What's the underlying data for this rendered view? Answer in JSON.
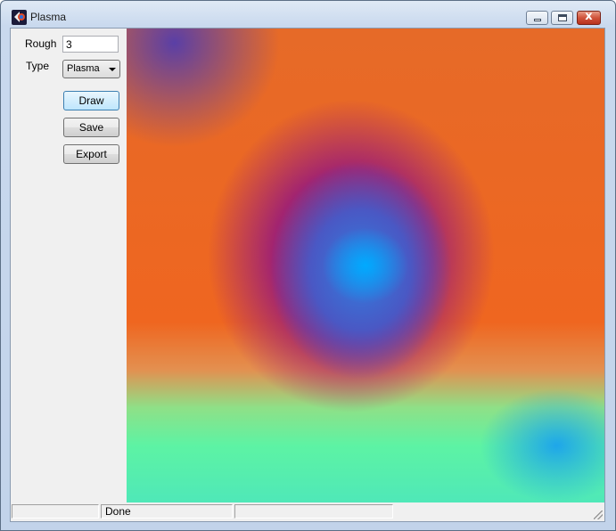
{
  "window": {
    "title": "Plasma",
    "icon": "plasma-app-icon",
    "controls": {
      "minimize": "minimize-icon",
      "maximize": "restore-icon",
      "close_glyph": "x"
    }
  },
  "sidebar": {
    "rough_label": "Rough",
    "rough_value": "3",
    "type_label": "Type",
    "type_selected": "Plasma",
    "buttons": {
      "draw": "Draw",
      "save": "Save",
      "export": "Export"
    }
  },
  "canvas": {
    "description_icon": "plasma-fractal-image",
    "colors": [
      "#2f7fe0",
      "#7a2e86",
      "#e66a28",
      "#5df3a4",
      "#1ea6ea"
    ]
  },
  "statusbar": {
    "panel1": "",
    "panel2": "Done",
    "panel3": ""
  }
}
